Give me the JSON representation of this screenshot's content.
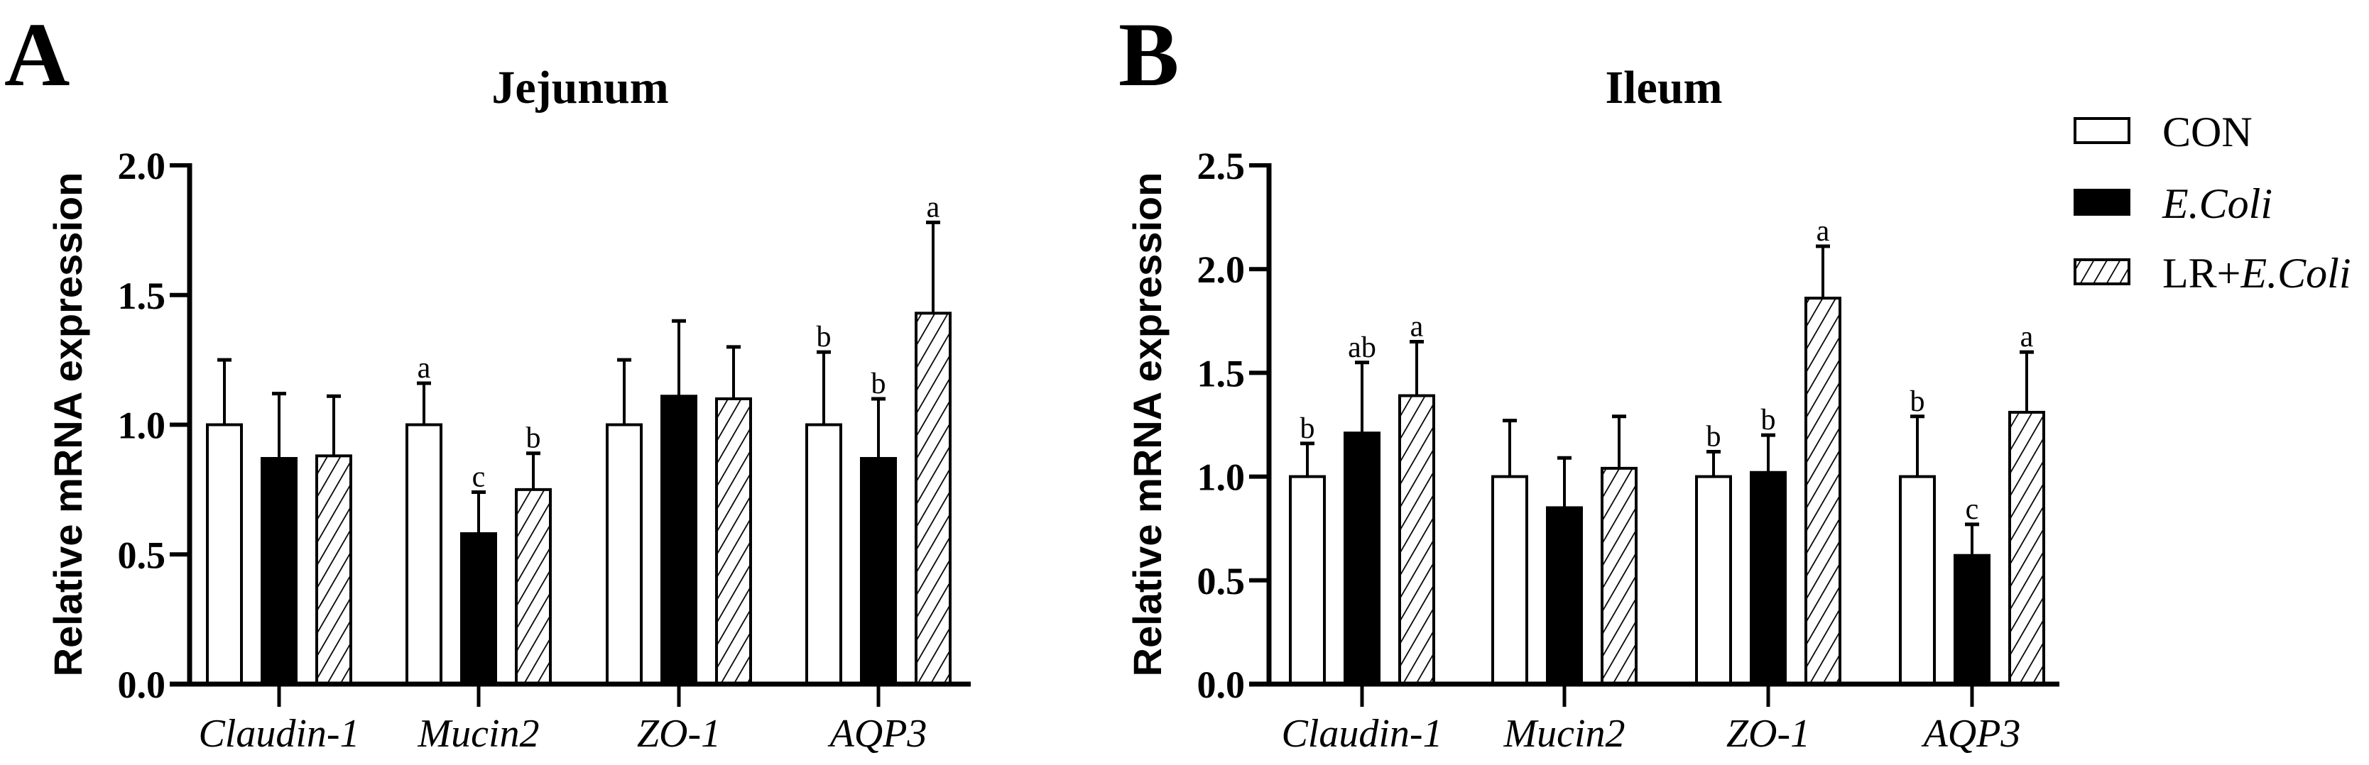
{
  "legend": {
    "position": "top-right",
    "items": [
      {
        "series": "CON",
        "label": "CON",
        "fill": "white"
      },
      {
        "series": "E.Coli",
        "label": "E.Coli",
        "fill": "black"
      },
      {
        "series": "LR+E.Coli",
        "label_prefix": "LR+",
        "label_italic": "E.Coli",
        "fill": "hatched"
      }
    ]
  },
  "colors": {
    "bar_outline": "#000000",
    "con_fill": "#ffffff",
    "ecoli_fill": "#000000",
    "hatch": "#000000"
  },
  "chart_data": [
    {
      "type": "bar",
      "panel_letter": "A",
      "title": "Jejunum",
      "ylabel": "Relative mRNA expression",
      "xlabel": "",
      "ylim": [
        0,
        2.0
      ],
      "yticks": [
        "0.0",
        "0.5",
        "1.0",
        "1.5",
        "2.0"
      ],
      "grid": false,
      "categories": [
        "Claudin-1",
        "Mucin2",
        "ZO-1",
        "AQP3"
      ],
      "series": [
        {
          "name": "CON",
          "values": [
            1.0,
            1.0,
            1.0,
            1.0
          ],
          "errors": [
            0.25,
            0.16,
            0.25,
            0.28
          ],
          "letters": [
            "",
            "a",
            "",
            "b"
          ]
        },
        {
          "name": "E.Coli",
          "values": [
            0.87,
            0.58,
            1.11,
            0.87
          ],
          "errors": [
            0.25,
            0.16,
            0.29,
            0.23
          ],
          "letters": [
            "",
            "c",
            "",
            "b"
          ]
        },
        {
          "name": "LR+E.Coli",
          "values": [
            0.88,
            0.75,
            1.1,
            1.43
          ],
          "errors": [
            0.23,
            0.14,
            0.2,
            0.35
          ],
          "letters": [
            "",
            "b",
            "",
            "a"
          ]
        }
      ]
    },
    {
      "type": "bar",
      "panel_letter": "B",
      "title": "Ileum",
      "ylabel": "Relative mRNA expression",
      "xlabel": "",
      "ylim": [
        0,
        2.5
      ],
      "yticks": [
        "0.0",
        "0.5",
        "1.0",
        "1.5",
        "2.0",
        "2.5"
      ],
      "grid": false,
      "categories": [
        "Claudin-1",
        "Mucin2",
        "ZO-1",
        "AQP3"
      ],
      "series": [
        {
          "name": "CON",
          "values": [
            1.0,
            1.0,
            1.0,
            1.0
          ],
          "errors": [
            0.16,
            0.27,
            0.12,
            0.29
          ],
          "letters": [
            "b",
            "",
            "b",
            "b"
          ]
        },
        {
          "name": "E.Coli",
          "values": [
            1.21,
            0.85,
            1.02,
            0.62
          ],
          "errors": [
            0.34,
            0.24,
            0.18,
            0.15
          ],
          "letters": [
            "ab",
            "",
            "b",
            "c"
          ]
        },
        {
          "name": "LR+E.Coli",
          "values": [
            1.39,
            1.04,
            1.86,
            1.31
          ],
          "errors": [
            0.26,
            0.25,
            0.25,
            0.29
          ],
          "letters": [
            "a",
            "",
            "a",
            "a"
          ]
        }
      ]
    }
  ]
}
